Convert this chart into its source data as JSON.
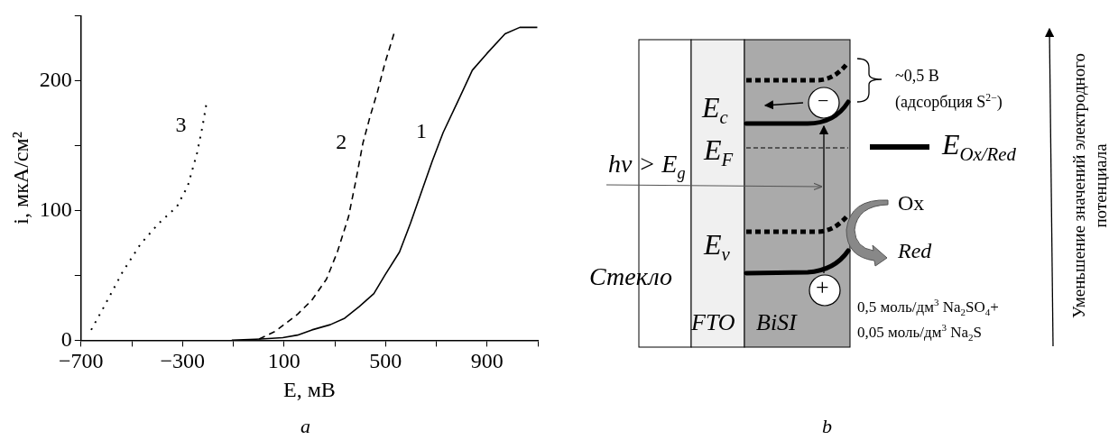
{
  "chart_data": [
    {
      "type": "line",
      "xlabel": "E, мВ",
      "ylabel": "i, мкА/см²",
      "xlim": [
        -700,
        1100
      ],
      "ylim": [
        0,
        250
      ],
      "xticks": [
        -700,
        {
          "value": -500,
          "label": null
        },
        -300,
        {
          "value": -100,
          "label": null
        },
        100,
        {
          "value": 300,
          "label": null
        },
        500,
        {
          "value": 700,
          "label": null
        },
        900,
        {
          "value": 1100,
          "label": null
        }
      ],
      "yticks": [
        0,
        {
          "value": 50,
          "label": null
        },
        100,
        {
          "value": 150,
          "label": null
        },
        200,
        {
          "value": 250,
          "label": null
        }
      ],
      "grid": false,
      "legend": false,
      "marker": "none",
      "series": [
        {
          "name": "1",
          "color": "#000000",
          "line_style": "solid",
          "x": [
            -106,
            9,
            95,
            153,
            210,
            282,
            339,
            397,
            454,
            497,
            555,
            598,
            641,
            684,
            727,
            785,
            842,
            900,
            971,
            1029,
            1098
          ],
          "values": [
            0,
            1,
            2,
            4,
            8,
            12,
            17,
            26,
            36,
            50,
            68,
            90,
            114,
            138,
            160,
            184,
            208,
            221,
            236,
            241,
            241
          ]
        },
        {
          "name": "2",
          "color": "#000000",
          "line_style": "dashed",
          "x": [
            2,
            66,
            153,
            210,
            267,
            310,
            354,
            382,
            411,
            440,
            469,
            497,
            533
          ],
          "values": [
            1,
            7,
            20,
            31,
            47,
            68,
            95,
            122,
            152,
            173,
            192,
            213,
            236
          ]
        },
        {
          "name": "3",
          "color": "#000000",
          "line_style": "dotted",
          "x": [
            -660,
            -609,
            -538,
            -466,
            -394,
            -322,
            -279,
            -243,
            -221,
            -207
          ],
          "values": [
            8,
            26,
            52,
            74,
            90,
            103,
            119,
            144,
            165,
            181
          ]
        }
      ],
      "annotations": [
        "a"
      ]
    },
    {
      "type": "other",
      "annotations": [
        "Стекло",
        "FTO",
        "BiSI",
        "E$_{c}$",
        "E$_{F}$",
        "E$_{v}$",
        "hν > E$_{g}$",
        "~0,5 В",
        "(адсорбция S$^{2−}$)",
        "E$_{Ox/Red}$",
        "Ox",
        "Red",
        "−",
        "+",
        "0,5 моль/дм$^{3}$ Na$_{2}$SO$_{4}$+",
        "0,05 моль/дм$^{3}$ Na$_{2}$S",
        "Уменьшение значений электродного потенциала",
        "b"
      ]
    }
  ]
}
